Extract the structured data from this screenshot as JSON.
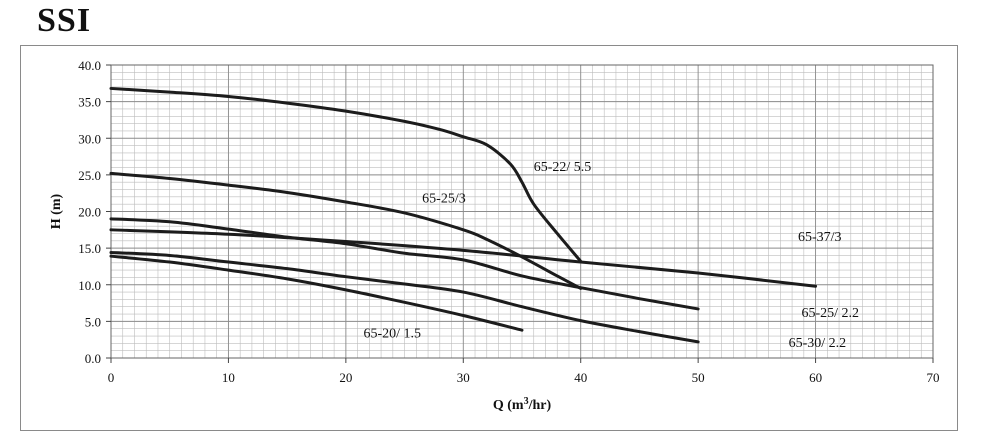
{
  "brand": "SSI",
  "chart_data": {
    "type": "line",
    "xlabel": "Q (m3/hr)",
    "xlabel_main": "Q (m",
    "xlabel_sup": "3",
    "xlabel_end": "/hr)",
    "ylabel": "H (m)",
    "xlim": [
      0,
      70
    ],
    "ylim": [
      0,
      40
    ],
    "x_ticks": [
      0,
      10,
      20,
      30,
      40,
      50,
      60,
      70
    ],
    "x_tick_labels": [
      "0",
      "10",
      "20",
      "30",
      "40",
      "50",
      "60",
      "70"
    ],
    "y_ticks": [
      0,
      5,
      10,
      15,
      20,
      25,
      30,
      35,
      40
    ],
    "y_tick_labels": [
      "0.0",
      "5.0",
      "10.0",
      "15.0",
      "20.0",
      "25.0",
      "30.0",
      "35.0",
      "40.0"
    ],
    "grid": true,
    "x_minor_step": 1,
    "y_minor_step": 1,
    "series": [
      {
        "name": "65-22/ 5.5",
        "label_at": [
          36,
          25.5
        ],
        "points": [
          [
            0,
            36.8
          ],
          [
            5,
            36.3
          ],
          [
            10,
            35.7
          ],
          [
            15,
            34.8
          ],
          [
            20,
            33.7
          ],
          [
            25,
            32.3
          ],
          [
            28,
            31.2
          ],
          [
            30,
            30.2
          ],
          [
            32,
            29.1
          ],
          [
            34,
            26.5
          ],
          [
            35,
            24.0
          ],
          [
            36,
            21.0
          ],
          [
            38,
            17.0
          ],
          [
            40,
            13.2
          ]
        ]
      },
      {
        "name": "65-25/3",
        "label_at": [
          26.5,
          21.2
        ],
        "points": [
          [
            0,
            25.2
          ],
          [
            5,
            24.5
          ],
          [
            10,
            23.6
          ],
          [
            15,
            22.6
          ],
          [
            20,
            21.3
          ],
          [
            25,
            19.8
          ],
          [
            30,
            17.5
          ],
          [
            32,
            16.2
          ],
          [
            35,
            13.8
          ],
          [
            38,
            11.2
          ],
          [
            40,
            9.5
          ]
        ]
      },
      {
        "name": "65-37/3",
        "label_at": [
          58.5,
          16.0
        ],
        "points": [
          [
            0,
            17.5
          ],
          [
            10,
            16.9
          ],
          [
            20,
            15.9
          ],
          [
            30,
            14.7
          ],
          [
            40,
            13.1
          ],
          [
            50,
            11.6
          ],
          [
            60,
            9.8
          ]
        ]
      },
      {
        "name": "65-25/ 2.2",
        "label_at": [
          58.8,
          5.6
        ],
        "points": [
          [
            0,
            19.0
          ],
          [
            5,
            18.6
          ],
          [
            10,
            17.6
          ],
          [
            15,
            16.5
          ],
          [
            20,
            15.6
          ],
          [
            25,
            14.3
          ],
          [
            30,
            13.4
          ],
          [
            35,
            11.2
          ],
          [
            40,
            9.6
          ],
          [
            45,
            8.1
          ],
          [
            50,
            6.7
          ]
        ]
      },
      {
        "name": "65-30/ 2.2",
        "label_at": [
          57.7,
          1.5
        ],
        "points": [
          [
            0,
            14.4
          ],
          [
            5,
            14.0
          ],
          [
            10,
            13.1
          ],
          [
            15,
            12.2
          ],
          [
            20,
            11.1
          ],
          [
            25,
            10.1
          ],
          [
            30,
            9.0
          ],
          [
            35,
            7.0
          ],
          [
            40,
            5.1
          ],
          [
            45,
            3.6
          ],
          [
            50,
            2.2
          ]
        ]
      },
      {
        "name": "65-20/ 1.5",
        "label_at": [
          21.5,
          2.8
        ],
        "points": [
          [
            0,
            13.9
          ],
          [
            5,
            13.1
          ],
          [
            10,
            12.0
          ],
          [
            15,
            10.8
          ],
          [
            20,
            9.3
          ],
          [
            25,
            7.6
          ],
          [
            30,
            5.8
          ],
          [
            35,
            3.8
          ]
        ]
      }
    ]
  }
}
